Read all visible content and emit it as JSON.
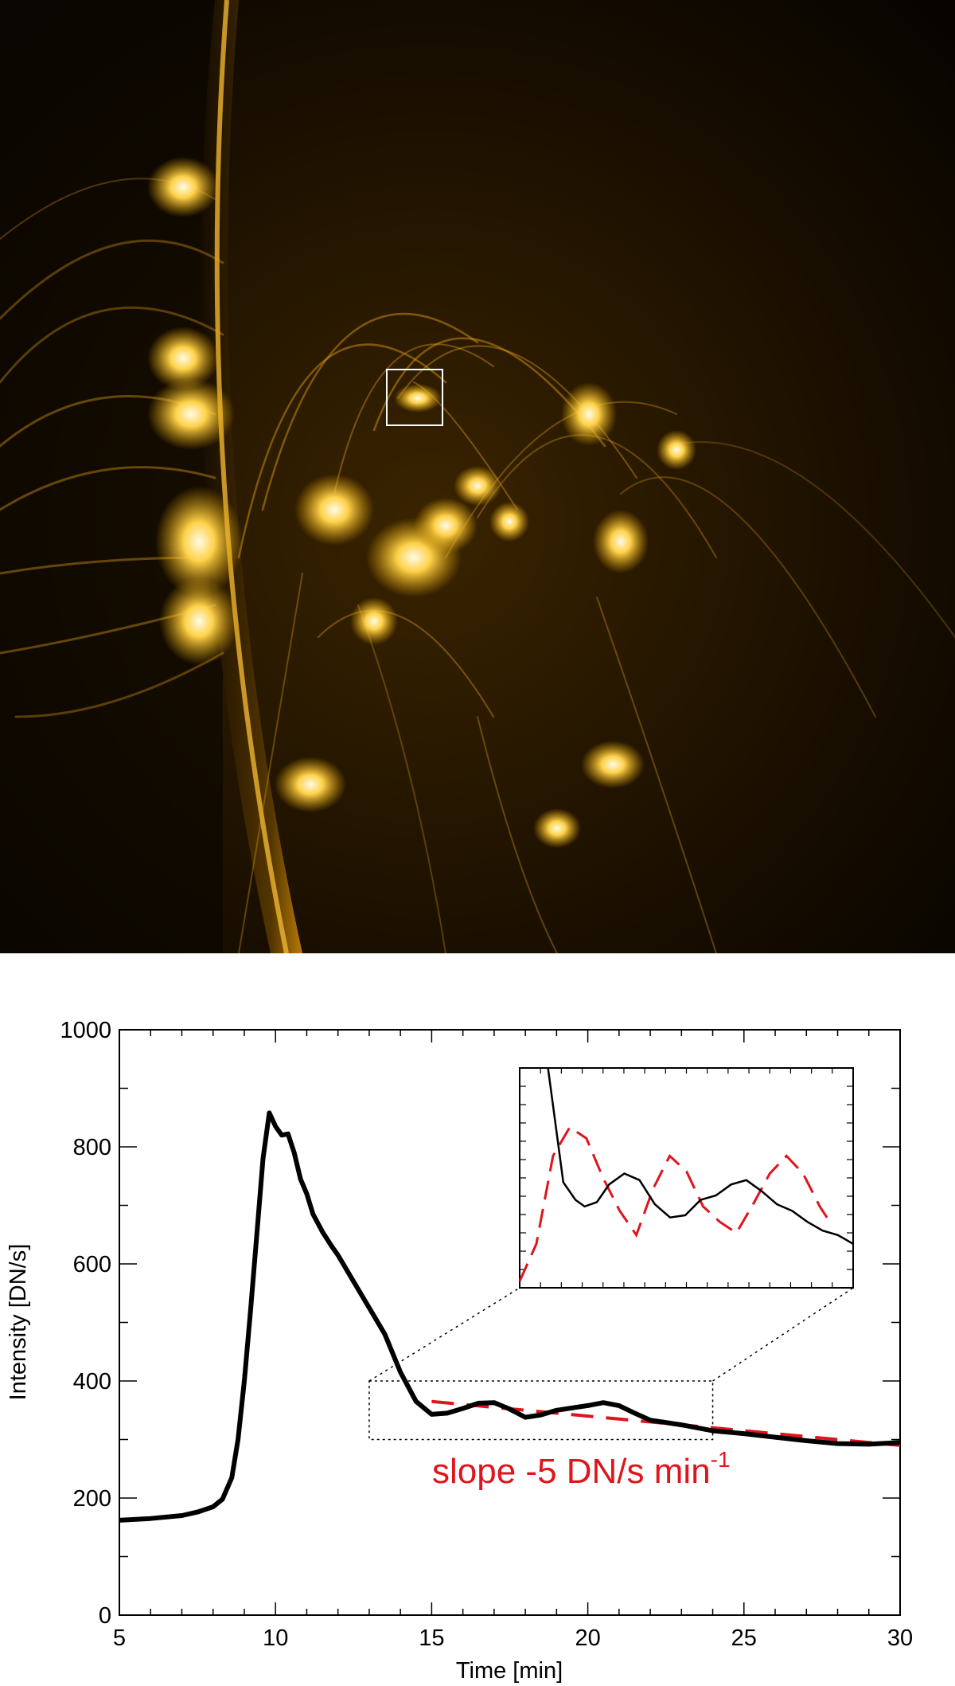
{
  "image_panel": {
    "description_icon": "solar-corona-icon",
    "colors": {
      "background": "#000000",
      "glow": "#e8a20a",
      "highlight": "#fff4d0"
    }
  },
  "chart_data": {
    "type": "line",
    "title": "",
    "xlabel": "Time [min]",
    "ylabel": "Intensity [DN/s]",
    "xlim": [
      5,
      30
    ],
    "ylim": [
      0,
      1000
    ],
    "xticks": [
      5,
      10,
      15,
      20,
      25,
      30
    ],
    "xtick_labels": [
      "5",
      "10",
      "15",
      "20",
      "25",
      "30"
    ],
    "yticks": [
      0,
      200,
      400,
      600,
      800,
      1000
    ],
    "ytick_labels": [
      "0",
      "200",
      "400",
      "600",
      "800",
      "1000"
    ],
    "grid": false,
    "series": [
      {
        "style": "solid-black",
        "x": [
          5,
          6,
          7,
          7.5,
          8,
          8.3,
          8.6,
          8.8,
          9.0,
          9.2,
          9.4,
          9.6,
          9.8,
          10.0,
          10.2,
          10.4,
          10.6,
          10.8,
          11.0,
          11.2,
          11.5,
          11.8,
          12.0,
          12.5,
          13.0,
          13.5,
          14.0,
          14.5,
          15.0,
          15.5,
          16.0,
          16.5,
          17.0,
          17.5,
          18.0,
          18.5,
          19.0,
          19.5,
          20.0,
          20.5,
          21.0,
          21.5,
          22.0,
          23.0,
          24.0,
          25.0,
          26.0,
          27.0,
          28.0,
          29.0,
          30.0
        ],
        "y": [
          162,
          165,
          170,
          176,
          185,
          198,
          235,
          300,
          400,
          520,
          650,
          780,
          858,
          835,
          820,
          822,
          790,
          745,
          720,
          685,
          655,
          630,
          615,
          570,
          525,
          480,
          415,
          365,
          343,
          345,
          353,
          362,
          363,
          352,
          338,
          342,
          350,
          354,
          358,
          363,
          358,
          345,
          333,
          325,
          315,
          310,
          304,
          298,
          293,
          292,
          295
        ]
      },
      {
        "style": "dashed-red",
        "x": [
          15,
          17,
          19,
          21,
          23,
          25,
          27,
          28,
          29,
          30
        ],
        "y": [
          365,
          355,
          345,
          335,
          325,
          315,
          305,
          300,
          295,
          290
        ]
      }
    ],
    "zoom_region": {
      "x": [
        13,
        24
      ],
      "y": [
        300,
        400
      ]
    },
    "annotations": [
      {
        "text": "slope -5 DN/s min",
        "superscript": "-1",
        "color": "#e0141c"
      }
    ],
    "inset": {
      "black_curve": [
        [
          0,
          0.0
        ],
        [
          0.05,
          0.52
        ],
        [
          0.09,
          0.6
        ],
        [
          0.12,
          0.63
        ],
        [
          0.16,
          0.61
        ],
        [
          0.2,
          0.53
        ],
        [
          0.25,
          0.48
        ],
        [
          0.3,
          0.51
        ],
        [
          0.35,
          0.62
        ],
        [
          0.4,
          0.68
        ],
        [
          0.45,
          0.67
        ],
        [
          0.5,
          0.6
        ],
        [
          0.55,
          0.58
        ],
        [
          0.6,
          0.53
        ],
        [
          0.65,
          0.51
        ],
        [
          0.7,
          0.56
        ],
        [
          0.75,
          0.62
        ],
        [
          0.8,
          0.65
        ],
        [
          0.85,
          0.7
        ],
        [
          0.9,
          0.74
        ],
        [
          0.95,
          0.76
        ],
        [
          1.0,
          0.8
        ]
      ],
      "red_curve": [
        [
          0,
          0.97
        ],
        [
          0.05,
          0.8
        ],
        [
          0.1,
          0.4
        ],
        [
          0.15,
          0.27
        ],
        [
          0.2,
          0.32
        ],
        [
          0.25,
          0.5
        ],
        [
          0.3,
          0.65
        ],
        [
          0.35,
          0.76
        ],
        [
          0.4,
          0.55
        ],
        [
          0.45,
          0.4
        ],
        [
          0.5,
          0.47
        ],
        [
          0.55,
          0.63
        ],
        [
          0.6,
          0.7
        ],
        [
          0.65,
          0.75
        ],
        [
          0.7,
          0.62
        ],
        [
          0.75,
          0.48
        ],
        [
          0.8,
          0.4
        ],
        [
          0.85,
          0.48
        ],
        [
          0.9,
          0.63
        ],
        [
          0.93,
          0.7
        ]
      ]
    }
  }
}
